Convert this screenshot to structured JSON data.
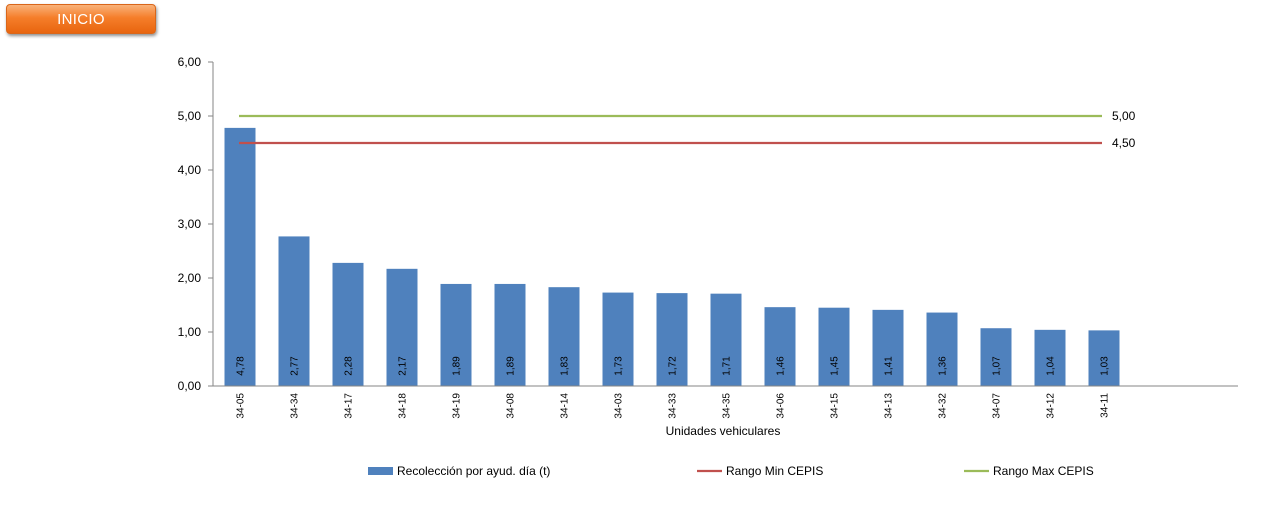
{
  "inicio_button": {
    "label": "INICIO"
  },
  "chart_data": {
    "type": "bar",
    "xlabel": "Unidades vehiculares",
    "ylabel": "",
    "ylim": [
      0,
      6
    ],
    "ytick_step": 1,
    "ytick_labels": [
      "0,00",
      "1,00",
      "2,00",
      "3,00",
      "4,00",
      "5,00",
      "6,00"
    ],
    "grid": false,
    "categories": [
      "34-05",
      "34-34",
      "34-17",
      "34-18",
      "34-19",
      "34-08",
      "34-14",
      "34-03",
      "34-33",
      "34-35",
      "34-06",
      "34-15",
      "34-13",
      "34-32",
      "34-07",
      "34-12",
      "34-11"
    ],
    "series": [
      {
        "name": "Recolección por ayud. día (t)",
        "color": "#4f81bd",
        "values": [
          4.78,
          2.77,
          2.28,
          2.17,
          1.89,
          1.89,
          1.83,
          1.73,
          1.72,
          1.71,
          1.46,
          1.45,
          1.41,
          1.36,
          1.07,
          1.04,
          1.03
        ],
        "data_labels": [
          "4,78",
          "2,77",
          "2,28",
          "2,17",
          "1,89",
          "1,89",
          "1,83",
          "1,73",
          "1,72",
          "1,71",
          "1,46",
          "1,45",
          "1,41",
          "1,36",
          "1,07",
          "1,04",
          "1,03"
        ]
      }
    ],
    "reference_lines": [
      {
        "name": "Rango Min CEPIS",
        "value": 4.5,
        "label": "4,50",
        "color": "#c0504d"
      },
      {
        "name": "Rango Max CEPIS",
        "value": 5.0,
        "label": "5,00",
        "color": "#9bbb59"
      }
    ],
    "legend_position": "bottom"
  }
}
